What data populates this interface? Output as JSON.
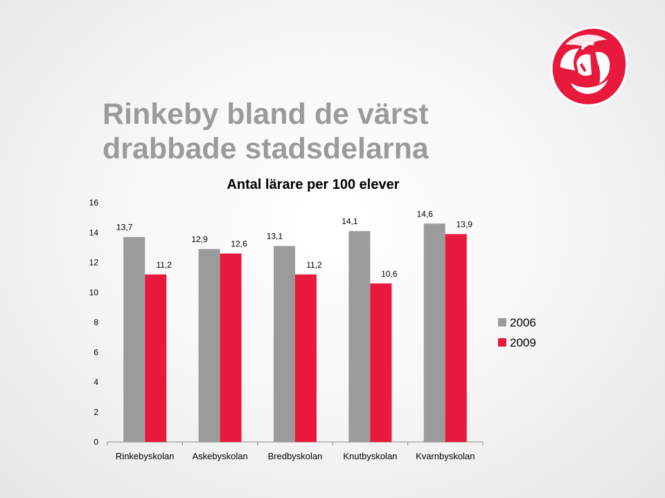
{
  "slide": {
    "title_line1": "Rinkeby bland de värst",
    "title_line2": "drabbade stadsdelarna"
  },
  "colors": {
    "series_2006": "#9b9b9b",
    "series_2009": "#e8193c",
    "title": "#9b9b9b",
    "logo_red": "#e8193c"
  },
  "logo": {
    "icon": "rose-icon"
  },
  "chart_data": {
    "type": "bar",
    "title": "Antal lärare per 100 elever",
    "xlabel": "",
    "ylabel": "",
    "categories": [
      "Rinkebyskolan",
      "Askebyskolan",
      "Bredbyskolan",
      "Knutbyskolan",
      "Kvarnbyskolan"
    ],
    "series": [
      {
        "name": "2006",
        "values": [
          13.7,
          12.9,
          13.1,
          14.1,
          14.6
        ],
        "labels": [
          "13,7",
          "12,9",
          "13,1",
          "14,1",
          "14,6"
        ]
      },
      {
        "name": "2009",
        "values": [
          11.2,
          12.6,
          11.2,
          10.6,
          13.9
        ],
        "labels": [
          "11,2",
          "12,6",
          "11,2",
          "10,6",
          "13,9"
        ]
      }
    ],
    "ylim": [
      0,
      16
    ],
    "yticks": [
      "0",
      "2",
      "4",
      "6",
      "8",
      "10",
      "12",
      "14",
      "16"
    ],
    "grid": false,
    "legend": "right"
  }
}
